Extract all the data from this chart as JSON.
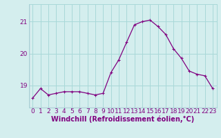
{
  "x": [
    0,
    1,
    2,
    3,
    4,
    5,
    6,
    7,
    8,
    9,
    10,
    11,
    12,
    13,
    14,
    15,
    16,
    17,
    18,
    19,
    20,
    21,
    22,
    23
  ],
  "y": [
    18.6,
    18.9,
    18.7,
    18.75,
    18.8,
    18.8,
    18.8,
    18.75,
    18.7,
    18.75,
    19.4,
    19.8,
    20.35,
    20.9,
    21.0,
    21.05,
    20.85,
    20.6,
    20.15,
    19.85,
    19.45,
    19.35,
    19.3,
    18.9
  ],
  "line_color": "#800080",
  "marker": "+",
  "marker_size": 3.5,
  "marker_lw": 0.8,
  "bg_color": "#d4eeee",
  "grid_color": "#a8d8d8",
  "xlabel": "Windchill (Refroidissement éolien,°C)",
  "ylim": [
    18.3,
    21.55
  ],
  "xlim": [
    -0.5,
    23.5
  ],
  "yticks": [
    19,
    20,
    21
  ],
  "xticks": [
    0,
    1,
    2,
    3,
    4,
    5,
    6,
    7,
    8,
    9,
    10,
    11,
    12,
    13,
    14,
    15,
    16,
    17,
    18,
    19,
    20,
    21,
    22,
    23
  ],
  "tick_color": "#800080",
  "label_color": "#800080",
  "font_size": 6.5,
  "xlabel_font_size": 7.0,
  "lw": 0.9
}
